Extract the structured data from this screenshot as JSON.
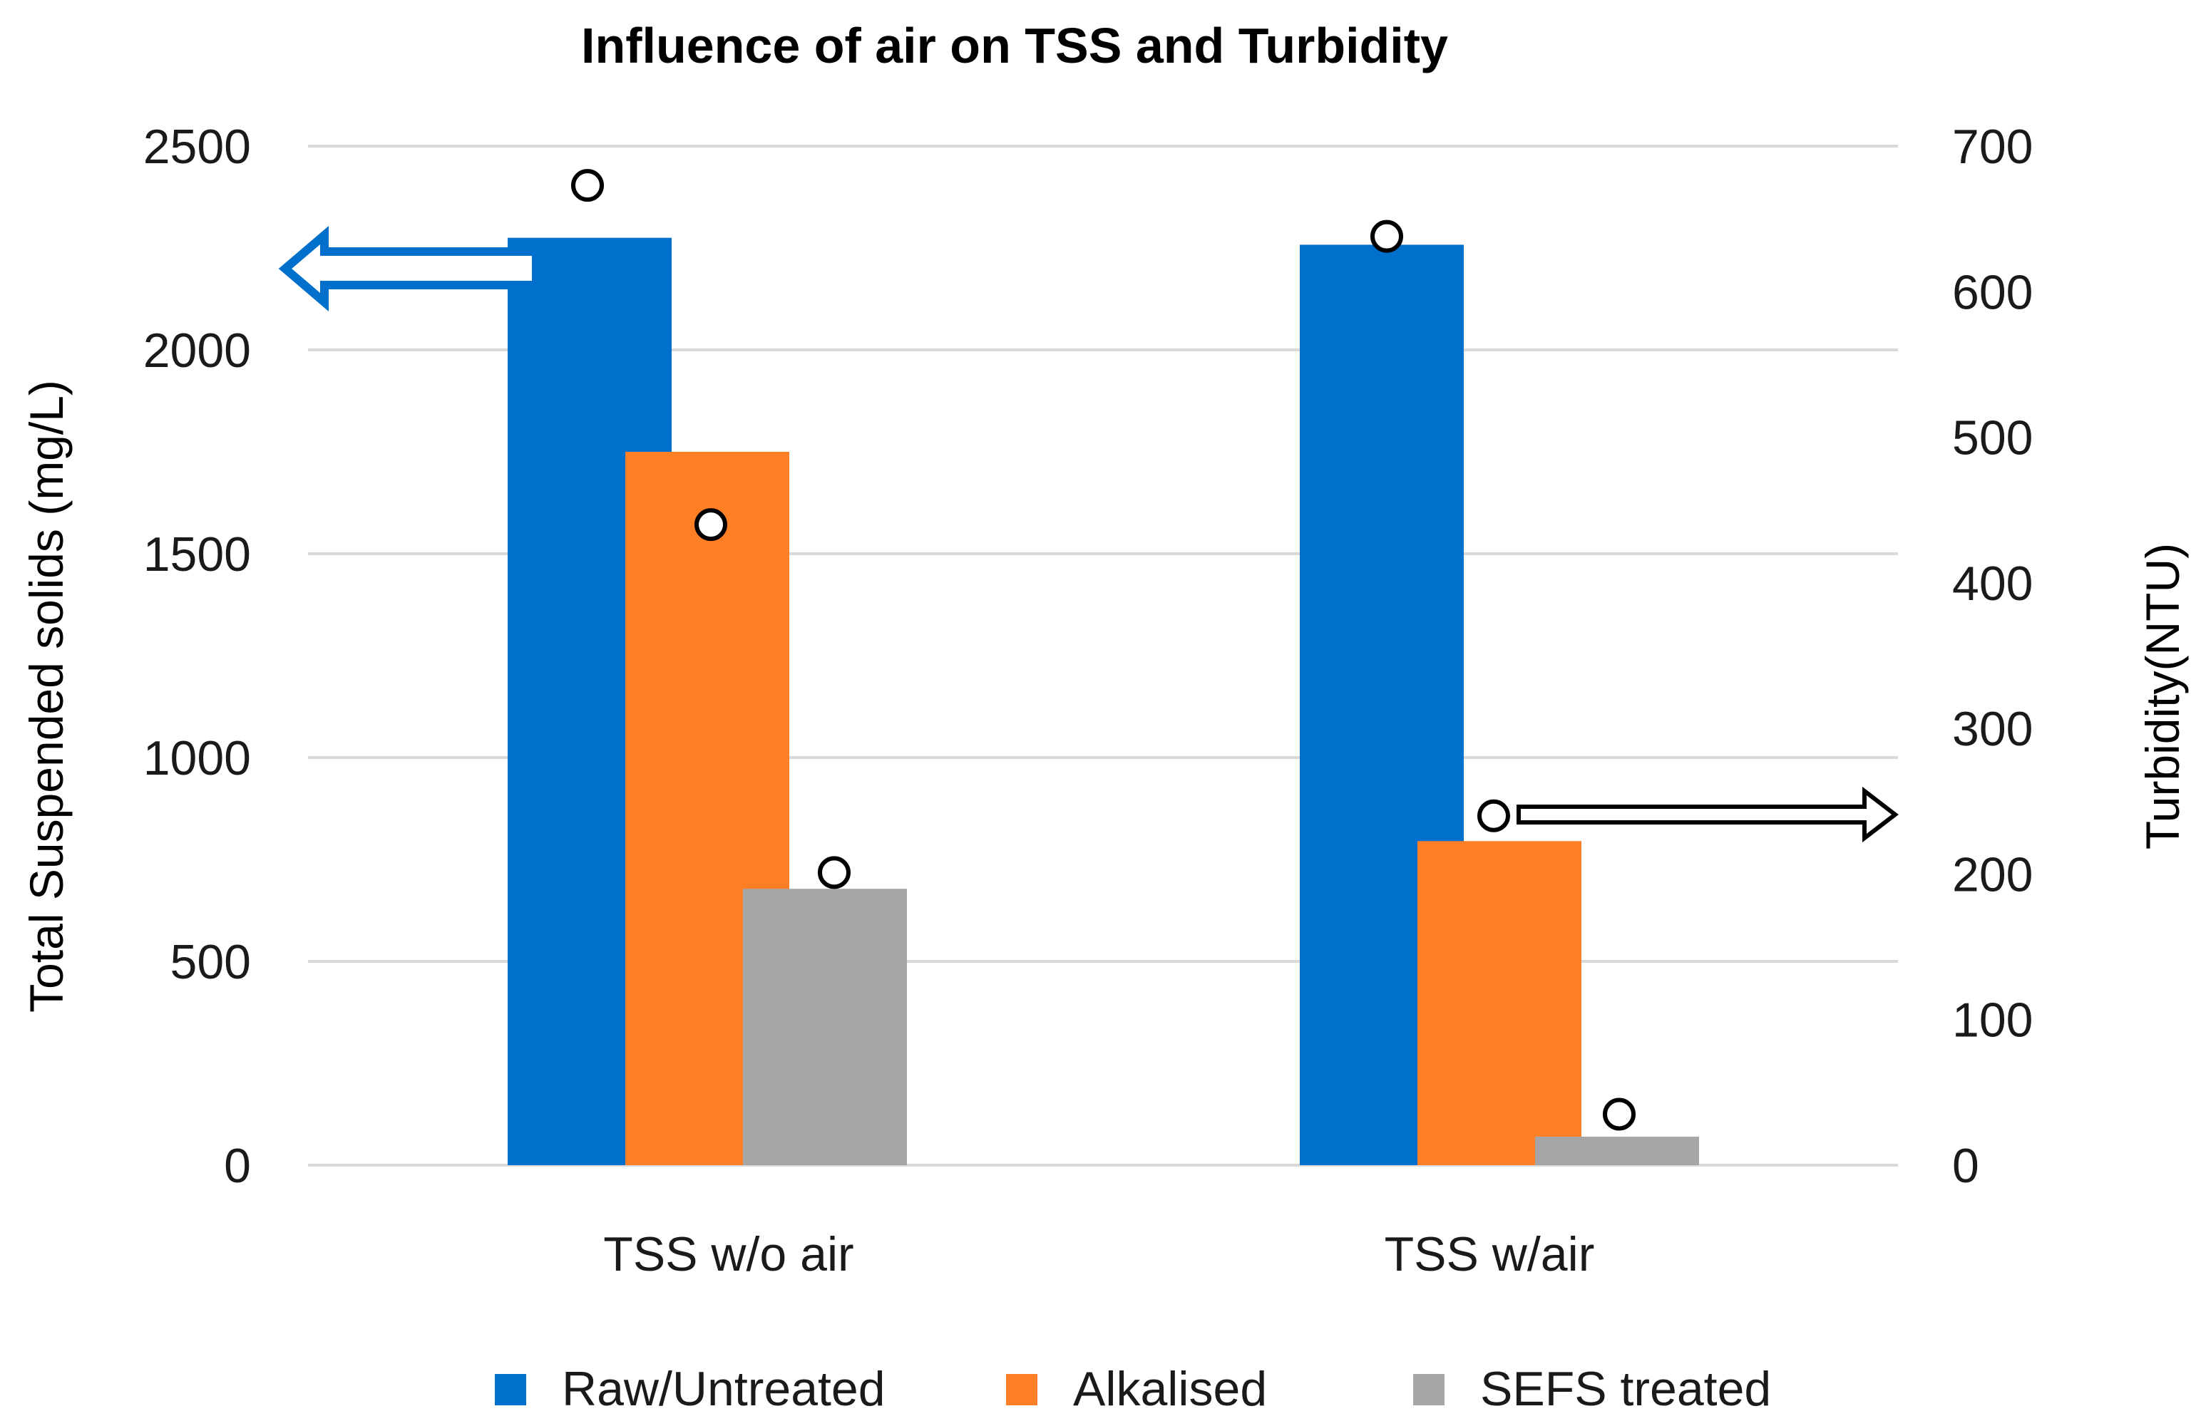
{
  "chart_data": {
    "type": "bar",
    "title": "Influence of air on TSS and Turbidity",
    "categories": [
      "TSS w/o air",
      "TSS w/air"
    ],
    "series": [
      {
        "name": "Raw/Untreated",
        "color": "#0070cc",
        "tss": [
          2275,
          2258
        ],
        "turbidity": [
          673,
          638
        ]
      },
      {
        "name": "Alkalised",
        "color": "#ff7f27",
        "tss": [
          1750,
          795
        ],
        "turbidity": [
          440,
          240
        ]
      },
      {
        "name": "SEFS treated",
        "color": "#a6a6a6",
        "tss": [
          678,
          70
        ],
        "turbidity": [
          201,
          35
        ]
      }
    ],
    "y_left": {
      "label": "Total Suspended solids (mg/L)",
      "min": 0,
      "max": 2500,
      "ticks": [
        "0",
        "500",
        "1000",
        "1500",
        "2000",
        "2500"
      ]
    },
    "y_right": {
      "label": "Turbidity(NTU)",
      "min": 0,
      "max": 700,
      "ticks": [
        "0",
        "100",
        "200",
        "300",
        "400",
        "500",
        "600",
        "700"
      ]
    },
    "annotations": [
      {
        "type": "arrow",
        "points_to": "left axis",
        "series": "bars (TSS)",
        "color": "#0070cc"
      },
      {
        "type": "arrow",
        "points_to": "right axis",
        "series": "circles (Turbidity)",
        "color": "#000000"
      }
    ],
    "legend_position": "bottom",
    "grid": true
  }
}
